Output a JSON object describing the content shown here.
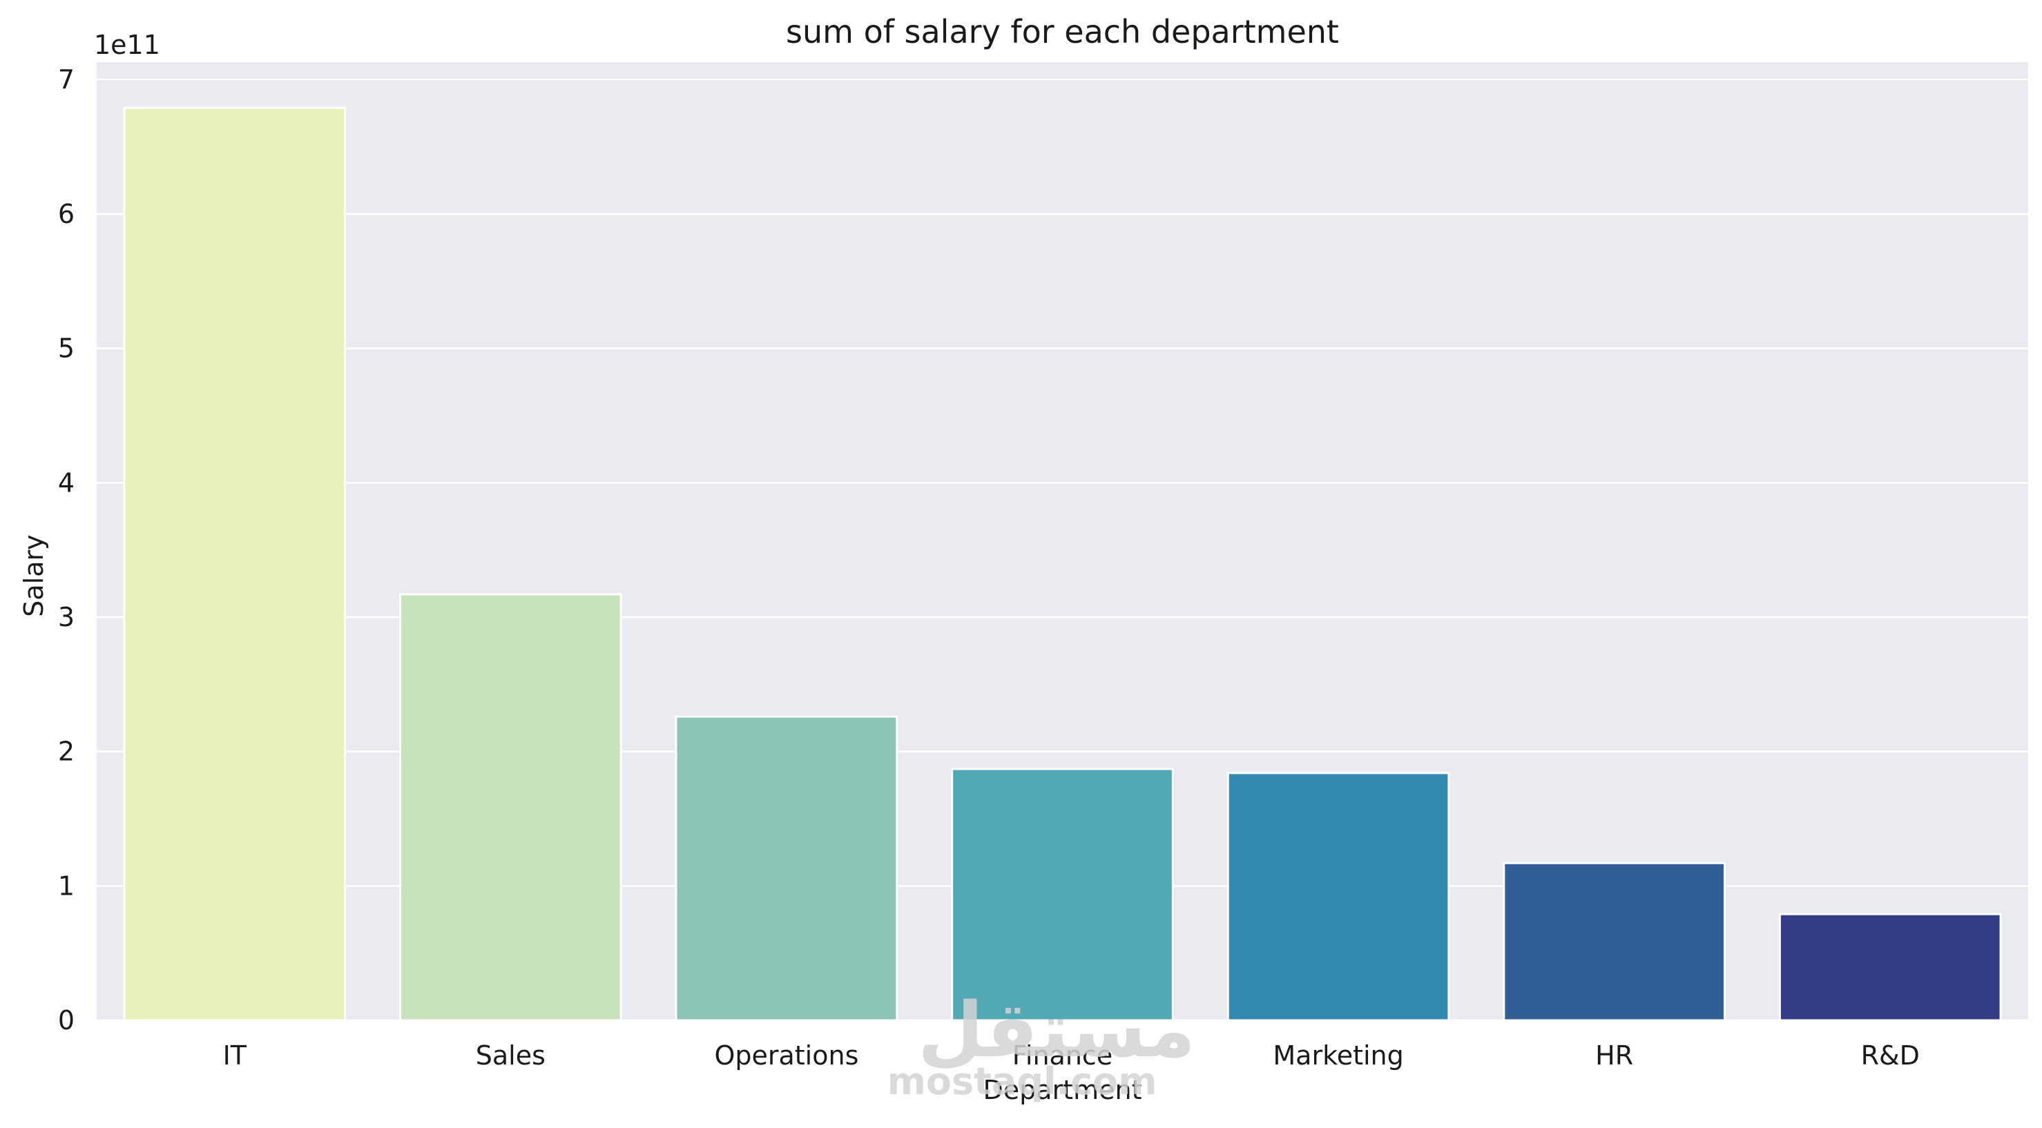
{
  "chart_data": {
    "type": "bar",
    "title": "sum of salary for each department",
    "xlabel": "Department",
    "ylabel": "Salary",
    "y_offset_label": "1e11",
    "categories": [
      "IT",
      "Sales",
      "Operations",
      "Finance",
      "Marketing",
      "HR",
      "R&D"
    ],
    "values": [
      6.79,
      3.17,
      2.26,
      1.87,
      1.84,
      1.17,
      0.79
    ],
    "value_scale": 100000000000.0,
    "ylim": [
      0,
      7.13
    ],
    "yticks": [
      0,
      1,
      2,
      3,
      4,
      5,
      6,
      7
    ],
    "grid": true,
    "colors": [
      "#e7f1b9",
      "#c8e2bb",
      "#8bc4b4",
      "#52a8b4",
      "#3389af",
      "#325e97",
      "#343c85"
    ],
    "background": "#eaebf1"
  },
  "watermark": {
    "logo_text": "مستقل",
    "site_text": "mostaql.com"
  }
}
